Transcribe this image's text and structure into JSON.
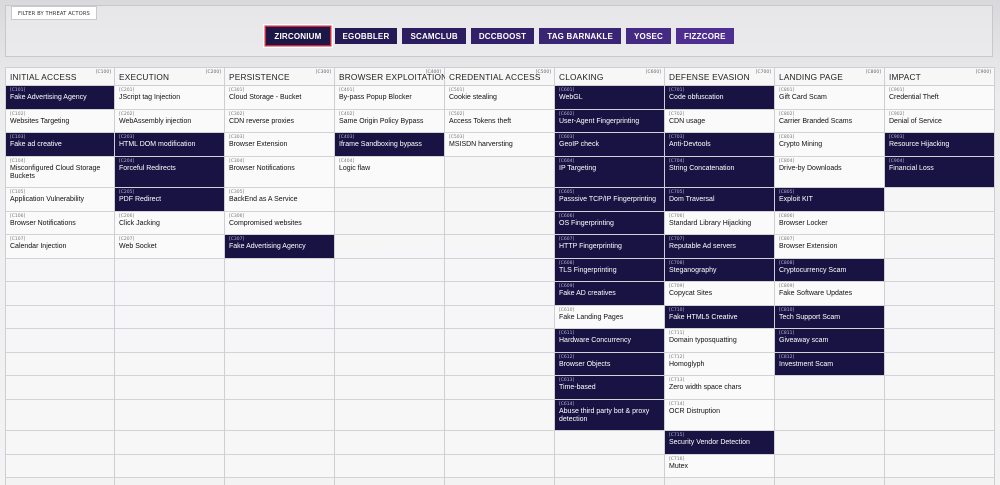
{
  "filter": {
    "label": "FILTER BY THREAT ACTORS",
    "actors": [
      {
        "name": "ZIRCONIUM",
        "active": true,
        "color": "#1d1748"
      },
      {
        "name": "EGOBBLER",
        "active": false,
        "color": "#251a55"
      },
      {
        "name": "SCAMCLUB",
        "active": false,
        "color": "#2b1d5f"
      },
      {
        "name": "DCCBOOST",
        "active": false,
        "color": "#32206a"
      },
      {
        "name": "TAG BARNAKLE",
        "active": false,
        "color": "#3a2575"
      },
      {
        "name": "YOSEC",
        "active": false,
        "color": "#442a82"
      },
      {
        "name": "FIZZCORE",
        "active": false,
        "color": "#4e2f8f"
      }
    ]
  },
  "colors": {
    "highlight": "#191343",
    "accent": "#d2283c"
  },
  "tactics": [
    {
      "name": "INITIAL ACCESS",
      "code": "[C100]",
      "techniques": [
        {
          "code": "[C101]",
          "title": "Fake Advertising Agency",
          "hl": true
        },
        {
          "code": "[C102]",
          "title": "Websites Targeting",
          "hl": false
        },
        {
          "code": "[C103]",
          "title": "Fake ad creative",
          "hl": true
        },
        {
          "code": "[C104]",
          "title": "Misconfigured Cloud Storage Buckets",
          "hl": false,
          "tall": true
        },
        {
          "code": "[C105]",
          "title": "Application Vulnerability",
          "hl": false
        },
        {
          "code": "[C106]",
          "title": "Browser Notifications",
          "hl": false
        },
        {
          "code": "[C107]",
          "title": "Calendar Injection",
          "hl": false
        }
      ]
    },
    {
      "name": "EXECUTION",
      "code": "[C200]",
      "techniques": [
        {
          "code": "[C201]",
          "title": "JScript tag Injection",
          "hl": false
        },
        {
          "code": "[C202]",
          "title": "WebAssembly injection",
          "hl": false
        },
        {
          "code": "[C203]",
          "title": "HTML DOM modification",
          "hl": true
        },
        {
          "code": "[C204]",
          "title": "Forceful Redirects",
          "hl": true,
          "tall": true
        },
        {
          "code": "[C205]",
          "title": "PDF Redirect",
          "hl": true
        },
        {
          "code": "[C206]",
          "title": "Click Jacking",
          "hl": false
        },
        {
          "code": "[C207]",
          "title": "Web Socket",
          "hl": false
        }
      ]
    },
    {
      "name": "PERSISTENCE",
      "code": "[C300]",
      "techniques": [
        {
          "code": "[C301]",
          "title": "Cloud Storage - Bucket",
          "hl": false
        },
        {
          "code": "[C302]",
          "title": "CDN reverse proxies",
          "hl": false
        },
        {
          "code": "[C303]",
          "title": "Browser Extension",
          "hl": false
        },
        {
          "code": "[C304]",
          "title": "Browser Notifications",
          "hl": false,
          "tall": true
        },
        {
          "code": "[C305]",
          "title": "BackEnd as A Service",
          "hl": false
        },
        {
          "code": "[C306]",
          "title": "Compromised websites",
          "hl": false
        },
        {
          "code": "[C307]",
          "title": "Fake Advertising Agency",
          "hl": true
        }
      ]
    },
    {
      "name": "BROWSER EXPLOITATION",
      "code": "[C400]",
      "techniques": [
        {
          "code": "[C401]",
          "title": "By-pass Popup Blocker",
          "hl": false
        },
        {
          "code": "[C402]",
          "title": "Same Origin Policy Bypass",
          "hl": false
        },
        {
          "code": "[C403]",
          "title": "Iframe Sandboxing bypass",
          "hl": true
        },
        {
          "code": "[C404]",
          "title": "Logic flaw",
          "hl": false,
          "tall": true
        }
      ]
    },
    {
      "name": "CREDENTIAL ACCESS",
      "code": "[C500]",
      "techniques": [
        {
          "code": "[C501]",
          "title": "Cookie stealing",
          "hl": false
        },
        {
          "code": "[C502]",
          "title": "Access Tokens theft",
          "hl": false
        },
        {
          "code": "[C503]",
          "title": "MSISDN harversting",
          "hl": false
        }
      ]
    },
    {
      "name": "CLOAKING",
      "code": "[C600]",
      "techniques": [
        {
          "code": "[C601]",
          "title": "WebGL",
          "hl": true
        },
        {
          "code": "[C602]",
          "title": "User-Agent Fingerprinting",
          "hl": true
        },
        {
          "code": "[C603]",
          "title": "GeoIP check",
          "hl": true
        },
        {
          "code": "[C604]",
          "title": "IP Targeting",
          "hl": true,
          "tall": true
        },
        {
          "code": "[C605]",
          "title": "Passsive TCP/IP Fingerprinting",
          "hl": true
        },
        {
          "code": "[C606]",
          "title": "OS Fingerprinting",
          "hl": true
        },
        {
          "code": "[C607]",
          "title": "HTTP Fingerprinting",
          "hl": true
        },
        {
          "code": "[C608]",
          "title": "TLS Fingerprinting",
          "hl": true
        },
        {
          "code": "[C609]",
          "title": "Fake AD creatives",
          "hl": true
        },
        {
          "code": "[C610]",
          "title": "Fake Landing Pages",
          "hl": false
        },
        {
          "code": "[C611]",
          "title": "Hardware Concurrency",
          "hl": true
        },
        {
          "code": "[C612]",
          "title": "Browser Objects",
          "hl": true
        },
        {
          "code": "[C613]",
          "title": "Time-based",
          "hl": true
        },
        {
          "code": "[C614]",
          "title": "Abuse third party bot & proxy detection",
          "hl": true,
          "tall": true
        }
      ]
    },
    {
      "name": "DEFENSE EVASION",
      "code": "[C700]",
      "techniques": [
        {
          "code": "[C701]",
          "title": "Code obfuscation",
          "hl": true
        },
        {
          "code": "[C702]",
          "title": "CDN usage",
          "hl": false
        },
        {
          "code": "[C703]",
          "title": "Anti-Devtools",
          "hl": true
        },
        {
          "code": "[C704]",
          "title": "String Concatenation",
          "hl": true,
          "tall": true
        },
        {
          "code": "[C705]",
          "title": "Dom Traversal",
          "hl": true
        },
        {
          "code": "[C706]",
          "title": "Standard Library Hijacking",
          "hl": false
        },
        {
          "code": "[C707]",
          "title": "Reputable Ad servers",
          "hl": true
        },
        {
          "code": "[C708]",
          "title": "Steganography",
          "hl": true
        },
        {
          "code": "[C709]",
          "title": "Copycat Sites",
          "hl": false
        },
        {
          "code": "[C710]",
          "title": "Fake HTML5 Creative",
          "hl": true
        },
        {
          "code": "[C711]",
          "title": "Domain typosquatting",
          "hl": false
        },
        {
          "code": "[C712]",
          "title": "Homoglyph",
          "hl": false
        },
        {
          "code": "[C713]",
          "title": "Zero width space chars",
          "hl": false
        },
        {
          "code": "[C714]",
          "title": "OCR Distruption",
          "hl": false,
          "tall": true
        },
        {
          "code": "[C715]",
          "title": "Security Vendor Detection",
          "hl": true
        },
        {
          "code": "[C716]",
          "title": "Mutex",
          "hl": false
        }
      ]
    },
    {
      "name": "LANDING PAGE",
      "code": "[C800]",
      "techniques": [
        {
          "code": "[C801]",
          "title": "Gift Card Scam",
          "hl": false
        },
        {
          "code": "[C802]",
          "title": "Carrier Branded Scams",
          "hl": false
        },
        {
          "code": "[C803]",
          "title": "Crypto Mining",
          "hl": false
        },
        {
          "code": "[C804]",
          "title": "Drive-by Downloads",
          "hl": false,
          "tall": true
        },
        {
          "code": "[C805]",
          "title": "Exploit KIT",
          "hl": true
        },
        {
          "code": "[C806]",
          "title": "Browser Locker",
          "hl": false
        },
        {
          "code": "[C807]",
          "title": "Browser Extension",
          "hl": false
        },
        {
          "code": "[C808]",
          "title": "Cryptocurrency Scam",
          "hl": true
        },
        {
          "code": "[C809]",
          "title": "Fake Software Updates",
          "hl": false
        },
        {
          "code": "[C810]",
          "title": "Tech Support Scam",
          "hl": true
        },
        {
          "code": "[C811]",
          "title": "Giveaway scam",
          "hl": true
        },
        {
          "code": "[C812]",
          "title": "Investment Scam",
          "hl": true
        }
      ]
    },
    {
      "name": "IMPACT",
      "code": "[C900]",
      "techniques": [
        {
          "code": "[C901]",
          "title": "Credential Theft",
          "hl": false
        },
        {
          "code": "[C902]",
          "title": "Denial of Service",
          "hl": false
        },
        {
          "code": "[C903]",
          "title": "Resource Hijacking",
          "hl": true
        },
        {
          "code": "[C904]",
          "title": "Financial Loss",
          "hl": true,
          "tall": true
        }
      ]
    }
  ]
}
